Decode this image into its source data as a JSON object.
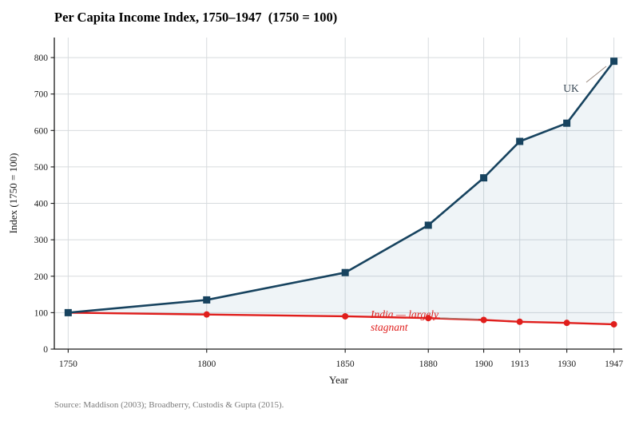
{
  "source_note": "Source: Maddison (2003); Broadberry, Custodis & Gupta (2015).",
  "chart_data": {
    "type": "line",
    "title": "Per Capita Income Index, 1750–1947  (1750 = 100)",
    "xlabel": "Year",
    "ylabel": "Index  (1750 = 100)",
    "x": [
      1750,
      1800,
      1850,
      1880,
      1900,
      1913,
      1930,
      1947
    ],
    "xticks": [
      1750,
      1800,
      1850,
      1880,
      1900,
      1913,
      1930,
      1947
    ],
    "yticks": [
      0,
      100,
      200,
      300,
      400,
      500,
      600,
      700,
      800
    ],
    "xlim": [
      1745,
      1950
    ],
    "ylim": [
      0,
      855
    ],
    "grid": true,
    "legend_position": "none",
    "series": [
      {
        "name": "India",
        "marker": "circle",
        "color": "#e01e1c",
        "values": [
          100,
          95,
          90,
          85,
          80,
          75,
          72,
          68
        ]
      },
      {
        "name": "UK",
        "marker": "square",
        "color": "#17435f",
        "values": [
          100,
          135,
          210,
          340,
          470,
          570,
          620,
          790
        ]
      }
    ],
    "fill_between": {
      "between": [
        "UK",
        "India"
      ],
      "color": "#2d6d96",
      "opacity": 0.08
    },
    "annotations": [
      {
        "id": "uk",
        "text": "UK",
        "color": "#3b4a57"
      },
      {
        "id": "india",
        "text_lines": [
          "India — largely",
          "stagnant"
        ],
        "color": "#e01e1c"
      }
    ],
    "colors": {
      "grid": "#d7dbde",
      "spine": "#1a1a1a",
      "leader_line": "#9b8b80"
    }
  }
}
